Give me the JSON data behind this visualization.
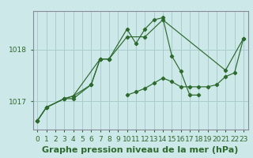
{
  "background_color": "#cde8e8",
  "grid_color": "#aacccc",
  "line_color": "#2d6a2d",
  "title": "Graphe pression niveau de la mer (hPa)",
  "xlim": [
    -0.5,
    23.5
  ],
  "ylim": [
    1016.45,
    1018.75
  ],
  "yticks": [
    1017,
    1018
  ],
  "xticks": [
    0,
    1,
    2,
    3,
    4,
    5,
    6,
    7,
    8,
    9,
    10,
    11,
    12,
    13,
    14,
    15,
    16,
    17,
    18,
    19,
    20,
    21,
    22,
    23
  ],
  "series": [
    {
      "x": [
        0,
        1,
        3,
        4,
        7,
        8,
        10,
        12,
        14,
        21,
        23
      ],
      "y": [
        1016.62,
        1016.88,
        1017.05,
        1017.1,
        1017.82,
        1017.82,
        1018.25,
        1018.25,
        1018.58,
        1017.6,
        1018.22
      ]
    },
    {
      "x": [
        0,
        1,
        3,
        4,
        6,
        7,
        8,
        10,
        11,
        12,
        13,
        14,
        15,
        16,
        17,
        18
      ],
      "y": [
        1016.62,
        1016.88,
        1017.05,
        1017.05,
        1017.32,
        1017.82,
        1017.82,
        1018.4,
        1018.12,
        1018.4,
        1018.58,
        1018.62,
        1017.88,
        1017.58,
        1017.12,
        1017.12
      ]
    },
    {
      "x": [
        0,
        1,
        3,
        4,
        6,
        7,
        8
      ],
      "y": [
        1016.62,
        1016.88,
        1017.05,
        1017.1,
        1017.32,
        1017.82,
        1017.82
      ]
    },
    {
      "x": [
        10,
        11,
        12,
        13,
        14,
        15,
        16,
        17,
        18,
        19,
        20,
        21,
        22,
        23
      ],
      "y": [
        1017.12,
        1017.18,
        1017.25,
        1017.35,
        1017.45,
        1017.38,
        1017.28,
        1017.28,
        1017.28,
        1017.28,
        1017.32,
        1017.48,
        1017.55,
        1018.22
      ]
    }
  ],
  "title_fontsize": 8,
  "tick_fontsize": 6.5
}
